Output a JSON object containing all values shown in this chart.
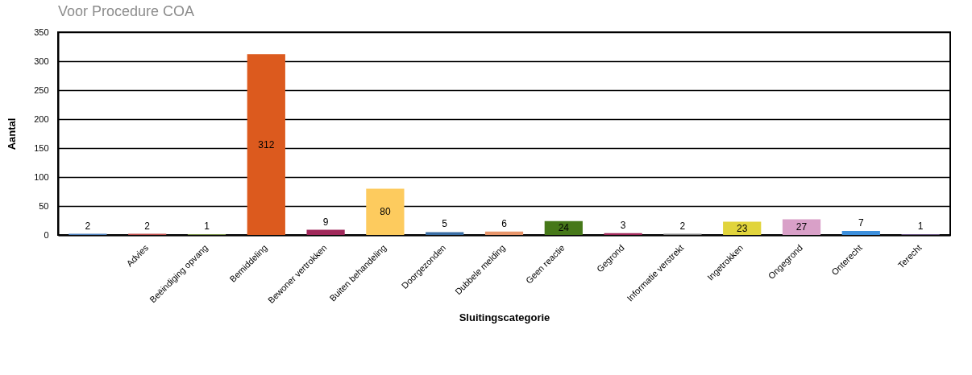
{
  "chart_data": {
    "type": "bar",
    "title": "Voor Procedure COA",
    "xlabel": "Sluitingscategorie",
    "ylabel": "Aantal",
    "categories": [
      null,
      "Advies",
      "Beëindiging opvang",
      "Bemiddeling",
      "Bewoner vertrokken",
      "Buiten behandeling",
      "Doorgezonden",
      "Dubbele melding",
      "Geen reactie",
      "Gegrond",
      "Informatie verstrekt",
      "Ingetrokken",
      "Ongegrond",
      "Onterecht",
      "Terecht"
    ],
    "values": [
      2,
      2,
      1,
      312,
      9,
      80,
      5,
      6,
      24,
      3,
      2,
      23,
      27,
      7,
      1
    ],
    "colors": [
      "#4a7ebb",
      "#be4b48",
      "#98b954",
      "#dc5a1e",
      "#a0285a",
      "#fdcb5e",
      "#3a6ea5",
      "#e8956a",
      "#467819",
      "#a0285a",
      "#7f7f7f",
      "#e1d43c",
      "#d9a0c8",
      "#3c8fdc",
      "#8064a2"
    ],
    "ylim": [
      0,
      350
    ],
    "yticks": [
      0,
      50,
      100,
      150,
      200,
      250,
      300,
      350
    ],
    "grid": "y",
    "data_labels": true
  }
}
